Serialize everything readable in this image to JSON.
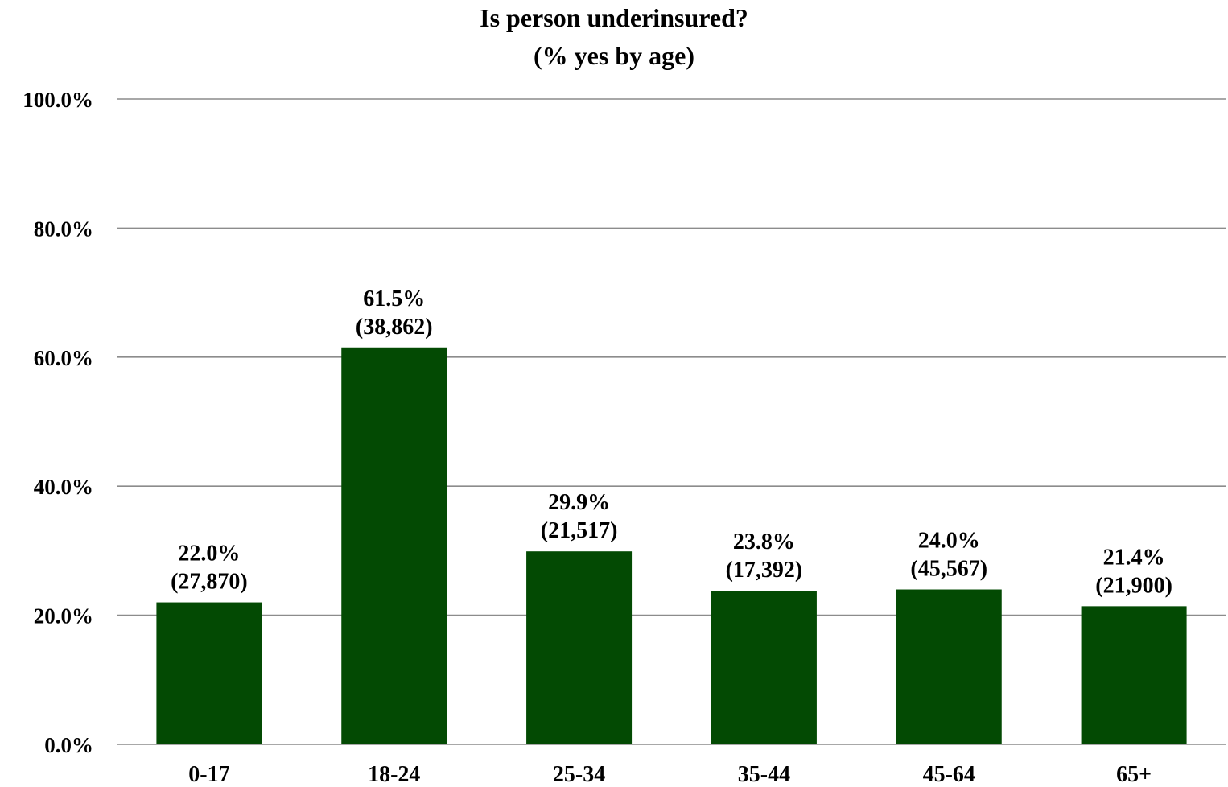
{
  "chart_data": {
    "type": "bar",
    "title": "Is person underinsured?",
    "subtitle": "(% yes by age)",
    "categories": [
      "0-17",
      "18-24",
      "25-34",
      "35-44",
      "45-64",
      "65+"
    ],
    "values": [
      22.0,
      61.5,
      29.9,
      23.8,
      24.0,
      21.4
    ],
    "value_labels": [
      "22.0%",
      "61.5%",
      "29.9%",
      "23.8%",
      "24.0%",
      "21.4%"
    ],
    "count_labels": [
      "(27,870)",
      "(38,862)",
      "(21,517)",
      "(17,392)",
      "(45,567)",
      "(21,900)"
    ],
    "ylim": [
      0,
      100
    ],
    "y_ticks": [
      0,
      20,
      40,
      60,
      80,
      100
    ],
    "y_tick_labels": [
      "0.0%",
      "20.0%",
      "40.0%",
      "60.0%",
      "80.0%",
      "100.0%"
    ],
    "xlabel": "",
    "ylabel": "",
    "grid": true,
    "legend": "none",
    "colors": {
      "bar": "#034a03",
      "grid": "#8c8c8c",
      "text": "#000000"
    }
  }
}
